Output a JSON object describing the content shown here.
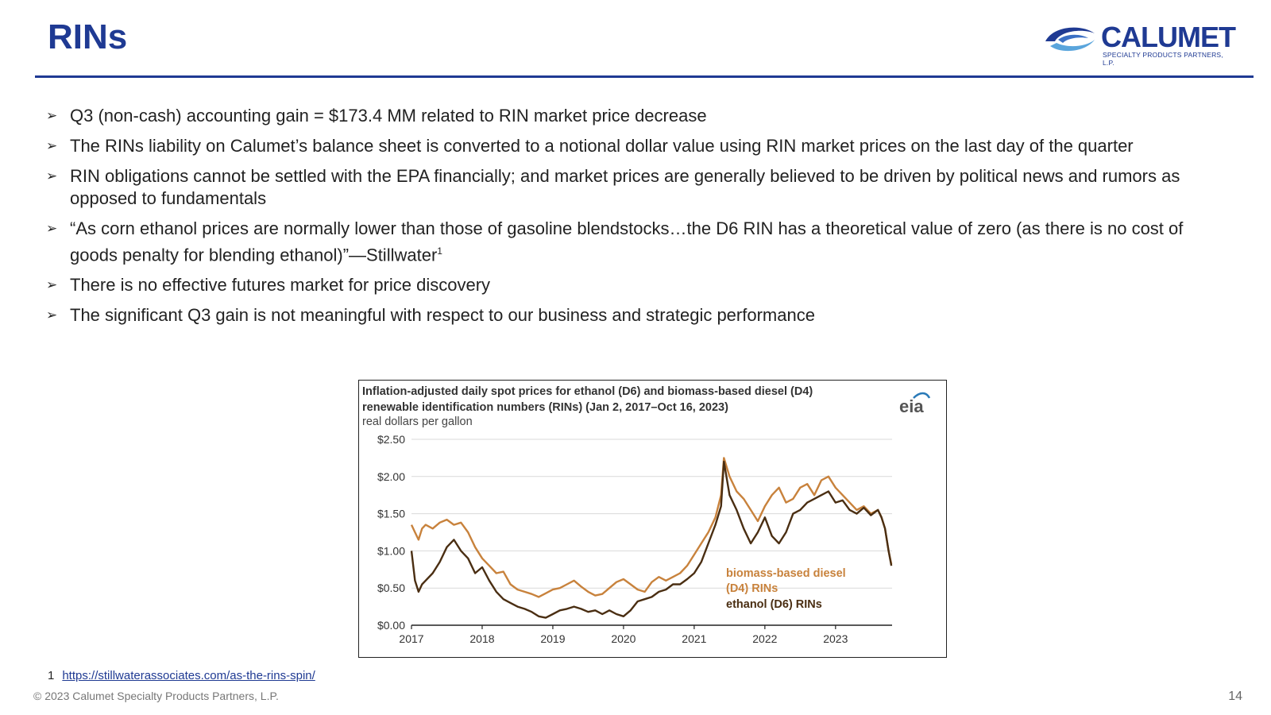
{
  "slide": {
    "title": "RINs",
    "logo": {
      "name": "CALUMET",
      "tagline": "SPECIALTY PRODUCTS PARTNERS, L.P."
    },
    "bullets": [
      {
        "text": "Q3 (non-cash) accounting gain = $173.4 MM related to RIN market price decrease"
      },
      {
        "text": "The RINs liability on Calumet’s balance sheet is converted to a notional dollar value using RIN market prices on the last day of the quarter"
      },
      {
        "text": "RIN obligations cannot be settled with the EPA financially; and market prices are generally believed to be driven by political news and rumors as opposed to fundamentals"
      },
      {
        "text": "“As corn ethanol prices are normally lower than those of gasoline blendstocks…the D6 RIN has a theoretical value of zero (as there is no cost of goods penalty for blending ethanol)”—Stillwater",
        "sup": "1"
      },
      {
        "text": "There is no effective futures market for price discovery"
      },
      {
        "text": "The significant Q3 gain is not meaningful with respect to our business and strategic performance"
      }
    ],
    "footnote": {
      "number": "1",
      "link": "https://stillwaterassociates.com/as-the-rins-spin/"
    },
    "copyright": "© 2023 Calumet Specialty Products Partners, L.P.",
    "page_number": "14"
  },
  "chart_data": {
    "type": "line",
    "title": "Inflation-adjusted daily spot prices for ethanol (D6) and biomass-based diesel (D4) renewable identification numbers (RINs) (Jan 2, 2017–Oct 16, 2023)",
    "title_lines": [
      "Inflation-adjusted daily spot prices for ethanol (D6) and biomass-based diesel (D4)",
      "renewable identification numbers (RINs) (Jan 2, 2017–Oct 16, 2023)"
    ],
    "subtitle": "real dollars per gallon",
    "source_logo": "eia",
    "xlabel": "",
    "ylabel": "real dollars per gallon",
    "xlim": [
      2017.0,
      2023.8
    ],
    "ylim": [
      0,
      2.5
    ],
    "xticks": [
      "2017",
      "2018",
      "2019",
      "2020",
      "2021",
      "2022",
      "2023"
    ],
    "yticks": [
      "$0.00",
      "$0.50",
      "$1.00",
      "$1.50",
      "$2.00",
      "$2.50"
    ],
    "grid": true,
    "colors": {
      "d4": "#c8823c",
      "d6": "#4a2e12",
      "grid": "#d9d9d9",
      "axis": "#222222"
    },
    "series": [
      {
        "name": "biomass-based diesel (D4) RINs",
        "label_lines": [
          "biomass-based diesel",
          "(D4) RINs"
        ],
        "color": "#c8823c",
        "x": [
          2017.0,
          2017.05,
          2017.1,
          2017.15,
          2017.2,
          2017.3,
          2017.4,
          2017.5,
          2017.6,
          2017.7,
          2017.8,
          2017.9,
          2018.0,
          2018.1,
          2018.2,
          2018.3,
          2018.4,
          2018.5,
          2018.6,
          2018.7,
          2018.8,
          2018.9,
          2019.0,
          2019.1,
          2019.2,
          2019.3,
          2019.4,
          2019.5,
          2019.6,
          2019.7,
          2019.8,
          2019.9,
          2020.0,
          2020.1,
          2020.2,
          2020.3,
          2020.4,
          2020.5,
          2020.6,
          2020.7,
          2020.8,
          2020.9,
          2021.0,
          2021.1,
          2021.2,
          2021.3,
          2021.38,
          2021.42,
          2021.5,
          2021.6,
          2021.7,
          2021.8,
          2021.9,
          2022.0,
          2022.1,
          2022.2,
          2022.3,
          2022.4,
          2022.5,
          2022.6,
          2022.7,
          2022.8,
          2022.9,
          2023.0,
          2023.1,
          2023.2,
          2023.3,
          2023.4,
          2023.5,
          2023.6,
          2023.65,
          2023.7,
          2023.75,
          2023.79
        ],
        "y": [
          1.35,
          1.25,
          1.15,
          1.3,
          1.35,
          1.3,
          1.38,
          1.42,
          1.35,
          1.38,
          1.25,
          1.05,
          0.9,
          0.8,
          0.7,
          0.72,
          0.55,
          0.48,
          0.45,
          0.42,
          0.38,
          0.43,
          0.48,
          0.5,
          0.55,
          0.6,
          0.52,
          0.45,
          0.4,
          0.42,
          0.5,
          0.58,
          0.62,
          0.55,
          0.48,
          0.45,
          0.58,
          0.65,
          0.6,
          0.65,
          0.7,
          0.8,
          0.95,
          1.1,
          1.25,
          1.45,
          1.75,
          2.25,
          2.0,
          1.8,
          1.7,
          1.55,
          1.4,
          1.6,
          1.75,
          1.85,
          1.65,
          1.7,
          1.85,
          1.9,
          1.75,
          1.95,
          2.0,
          1.85,
          1.75,
          1.65,
          1.55,
          1.6,
          1.5,
          1.55,
          1.45,
          1.3,
          1.0,
          0.82
        ]
      },
      {
        "name": "ethanol (D6) RINs",
        "label_lines": [
          "ethanol (D6) RINs"
        ],
        "color": "#4a2e12",
        "x": [
          2017.0,
          2017.05,
          2017.1,
          2017.15,
          2017.2,
          2017.3,
          2017.4,
          2017.5,
          2017.6,
          2017.7,
          2017.8,
          2017.9,
          2018.0,
          2018.1,
          2018.2,
          2018.3,
          2018.4,
          2018.5,
          2018.6,
          2018.7,
          2018.8,
          2018.9,
          2019.0,
          2019.1,
          2019.2,
          2019.3,
          2019.4,
          2019.5,
          2019.6,
          2019.7,
          2019.8,
          2019.9,
          2020.0,
          2020.1,
          2020.2,
          2020.3,
          2020.4,
          2020.5,
          2020.6,
          2020.7,
          2020.8,
          2020.9,
          2021.0,
          2021.1,
          2021.2,
          2021.3,
          2021.38,
          2021.42,
          2021.5,
          2021.6,
          2021.7,
          2021.8,
          2021.9,
          2022.0,
          2022.1,
          2022.2,
          2022.3,
          2022.4,
          2022.5,
          2022.6,
          2022.7,
          2022.8,
          2022.9,
          2023.0,
          2023.1,
          2023.2,
          2023.3,
          2023.4,
          2023.5,
          2023.6,
          2023.65,
          2023.7,
          2023.75,
          2023.79
        ],
        "y": [
          1.0,
          0.6,
          0.45,
          0.55,
          0.6,
          0.7,
          0.85,
          1.05,
          1.15,
          1.0,
          0.9,
          0.7,
          0.78,
          0.6,
          0.45,
          0.35,
          0.3,
          0.25,
          0.22,
          0.18,
          0.12,
          0.1,
          0.15,
          0.2,
          0.22,
          0.25,
          0.22,
          0.18,
          0.2,
          0.15,
          0.2,
          0.15,
          0.12,
          0.2,
          0.32,
          0.35,
          0.38,
          0.45,
          0.48,
          0.55,
          0.55,
          0.62,
          0.7,
          0.85,
          1.1,
          1.35,
          1.6,
          2.2,
          1.75,
          1.55,
          1.3,
          1.1,
          1.25,
          1.45,
          1.2,
          1.1,
          1.25,
          1.5,
          1.55,
          1.65,
          1.7,
          1.75,
          1.8,
          1.65,
          1.68,
          1.55,
          1.5,
          1.58,
          1.48,
          1.55,
          1.45,
          1.3,
          1.0,
          0.8
        ]
      }
    ]
  }
}
